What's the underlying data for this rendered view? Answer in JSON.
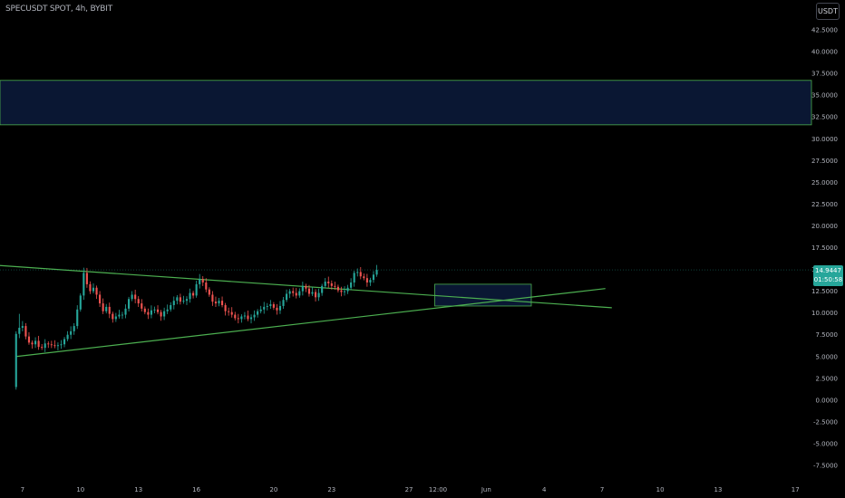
{
  "symbol_title": "SPECUSDT SPOT, 4h, BYBIT",
  "currency_button": "USDT",
  "last_price": {
    "value": "14.9447",
    "countdown": "01:50:58",
    "price": 14.9447,
    "color": "#26a69a"
  },
  "colors": {
    "up": "#26a69a",
    "down": "#ef5350",
    "trendline": "#4caf50",
    "zone_fill": "#0c1b3c",
    "zone_border": "#4caf50",
    "axis_text": "#b2b5be"
  },
  "chart_data": {
    "type": "candlestick",
    "title": "SPECUSDT SPOT, 4h, BYBIT",
    "timeframe": "4h",
    "exchange": "BYBIT",
    "ylim": [
      -7.5,
      42.5
    ],
    "y_ticks": [
      "42.5000",
      "40.0000",
      "37.5000",
      "35.0000",
      "32.5000",
      "30.0000",
      "27.5000",
      "25.0000",
      "22.5000",
      "20.0000",
      "17.5000",
      "15.0000",
      "12.5000",
      "10.0000",
      "7.5000",
      "5.0000",
      "2.5000",
      "0.0000",
      "-2.5000",
      "-5.0000",
      "-7.5000"
    ],
    "x_ticks": [
      {
        "label": "7",
        "t": 2
      },
      {
        "label": "10",
        "t": 20
      },
      {
        "label": "13",
        "t": 38
      },
      {
        "label": "16",
        "t": 56
      },
      {
        "label": "20",
        "t": 80
      },
      {
        "label": "23",
        "t": 98
      },
      {
        "label": "27",
        "t": 122
      },
      {
        "label": "12:00",
        "t": 131
      },
      {
        "label": "Jun",
        "t": 146
      },
      {
        "label": "4",
        "t": 164
      },
      {
        "label": "7",
        "t": 182
      },
      {
        "label": "10",
        "t": 200
      },
      {
        "label": "13",
        "t": 218
      },
      {
        "label": "17",
        "t": 242
      }
    ],
    "x_range": [
      -5,
      247
    ],
    "grid": false,
    "candles_close": [
      7.6,
      8.3,
      8.5,
      7.3,
      6.6,
      6.4,
      6.8,
      6.1,
      6.0,
      6.5,
      6.4,
      6.3,
      6.2,
      6.3,
      6.4,
      7.0,
      7.5,
      7.9,
      8.5,
      10.4,
      12.0,
      14.6,
      13.3,
      12.5,
      12.9,
      12.1,
      11.1,
      10.2,
      10.7,
      9.9,
      9.3,
      9.6,
      9.8,
      9.8,
      10.5,
      11.6,
      12.1,
      11.6,
      11.1,
      10.5,
      10.1,
      9.8,
      10.3,
      10.4,
      10.1,
      9.6,
      10.2,
      10.4,
      10.9,
      11.4,
      11.8,
      11.3,
      11.4,
      11.6,
      12.3,
      12.0,
      13.3,
      13.9,
      13.5,
      12.7,
      12.1,
      11.3,
      11.1,
      11.4,
      10.9,
      10.2,
      10.1,
      9.8,
      9.4,
      9.3,
      9.6,
      9.7,
      9.3,
      9.5,
      9.8,
      10.2,
      10.4,
      10.7,
      10.8,
      11.0,
      10.6,
      10.3,
      10.8,
      11.5,
      12.2,
      12.5,
      12.3,
      12.0,
      12.5,
      13.1,
      12.8,
      12.2,
      12.4,
      11.8,
      12.3,
      13.1,
      13.6,
      13.4,
      13.1,
      13.0,
      12.6,
      12.4,
      12.5,
      12.9,
      13.5,
      14.6,
      14.7,
      14.2,
      14.0,
      13.5,
      13.8,
      14.4,
      14.9447
    ],
    "candles_open_first": 1.5,
    "zones": [
      {
        "name": "resistance-zone",
        "y_top": 36.7,
        "y_bottom": 31.6
      },
      {
        "name": "range-box",
        "y_top": 13.3,
        "y_bottom": 10.8,
        "t_start": 130,
        "t_end": 160
      }
    ],
    "trendlines": [
      {
        "name": "descending-trendline",
        "t1": -15,
        "y1": 15.7,
        "t2": 185,
        "y2": 10.6
      },
      {
        "name": "ascending-trendline",
        "t1": 0,
        "y1": 5.0,
        "t2": 183,
        "y2": 12.8
      }
    ]
  }
}
